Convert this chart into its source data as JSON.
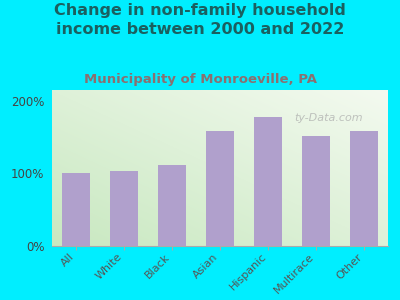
{
  "title": "Change in non-family household\nincome between 2000 and 2022",
  "subtitle": "Municipality of Monroeville, PA",
  "categories": [
    "All",
    "White",
    "Black",
    "Asian",
    "Hispanic",
    "Multirace",
    "Other"
  ],
  "values": [
    100,
    104,
    112,
    158,
    178,
    152,
    158
  ],
  "bar_color": "#b0a0cc",
  "background_color": "#00eeff",
  "plot_bg_color_tl": "#c8e8c0",
  "plot_bg_color_br": "#f4faf0",
  "title_color": "#1a6060",
  "subtitle_color": "#8a7070",
  "ylim": [
    0,
    215
  ],
  "yticks": [
    0,
    100,
    200
  ],
  "ytick_labels": [
    "0%",
    "100%",
    "200%"
  ],
  "watermark": "ty-Data.com",
  "title_fontsize": 11.5,
  "subtitle_fontsize": 9.5
}
